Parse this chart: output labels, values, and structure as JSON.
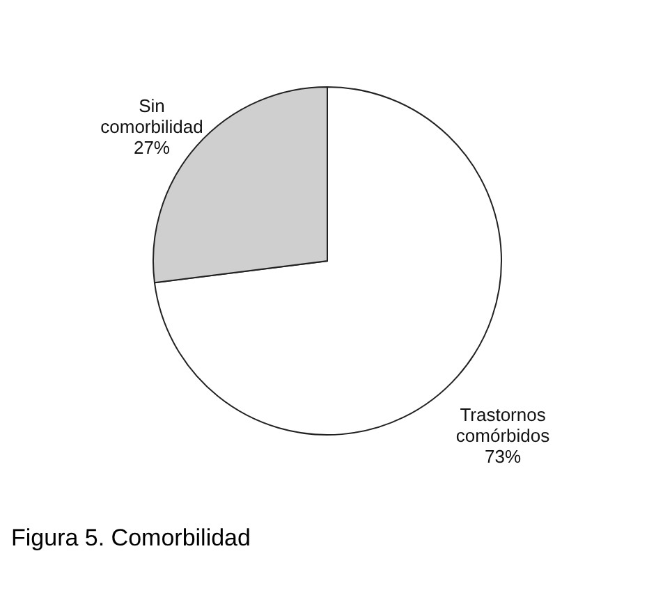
{
  "chart_data": {
    "type": "pie",
    "title": "Figura 5. Comorbilidad",
    "categories": [
      "Trastornos comórbidos",
      "Sin comorbilidad"
    ],
    "values": [
      73,
      27
    ],
    "colors": [
      "#ffffff",
      "#cfcfcf"
    ],
    "value_labels": [
      "73%",
      "27%"
    ],
    "legend": false
  }
}
